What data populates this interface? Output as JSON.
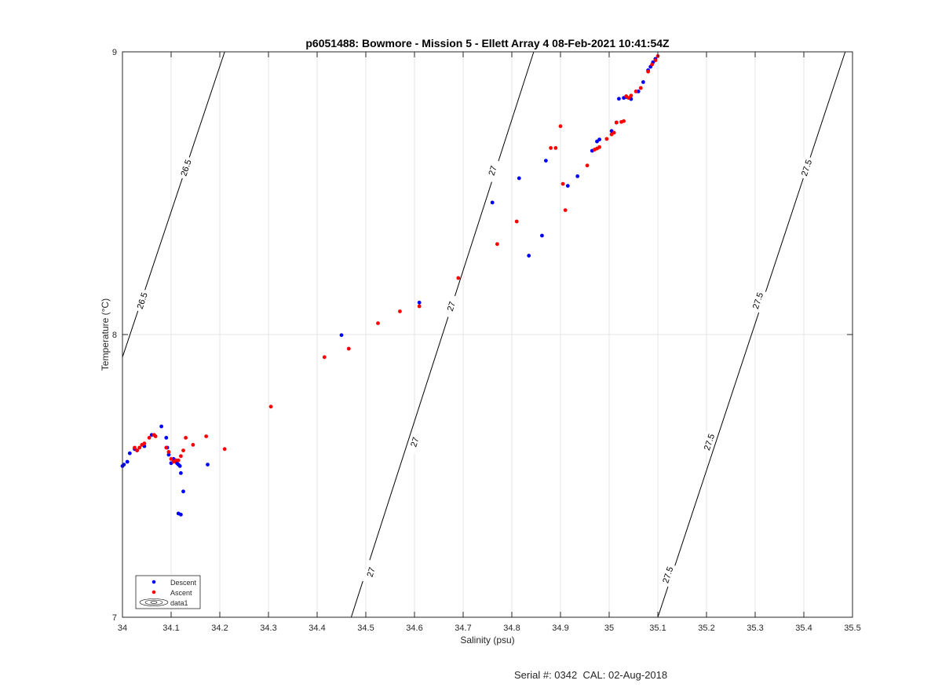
{
  "chart_data": {
    "type": "scatter",
    "title": "p6051488: Bowmore - Mission 5 - Ellett Array 4 08-Feb-2021 10:41:54Z",
    "xlabel": "Salinity (psu)",
    "ylabel": "Temperature (°C)",
    "xlim": [
      34,
      35.5
    ],
    "ylim": [
      7,
      9
    ],
    "xticks": [
      "34",
      "34.1",
      "34.2",
      "34.3",
      "34.4",
      "34.5",
      "34.6",
      "34.7",
      "34.8",
      "34.9",
      "35",
      "35.1",
      "35.2",
      "35.3",
      "35.4",
      "35.5"
    ],
    "yticks": [
      "7",
      "8",
      "9"
    ],
    "grid": true,
    "legend_position": "bottom-left",
    "legend": [
      "Descent",
      "Ascent",
      "data1"
    ],
    "colors": {
      "descent": "#0000ff",
      "ascent": "#ff0000",
      "contour": "#000000",
      "grid": "#e6e6e6"
    },
    "contours": [
      {
        "label": "26.5",
        "points": [
          [
            34.0,
            7.92
          ],
          [
            34.21,
            9.0
          ]
        ],
        "label_positions": [
          [
            34.04,
            8.12
          ],
          [
            34.13,
            8.59
          ]
        ]
      },
      {
        "label": "27",
        "points": [
          [
            34.47,
            7.0
          ],
          [
            34.845,
            9.0
          ]
        ],
        "label_positions": [
          [
            34.51,
            7.16
          ],
          [
            34.6,
            7.62
          ],
          [
            34.675,
            8.1
          ],
          [
            34.76,
            8.58
          ]
        ]
      },
      {
        "label": "27.5",
        "points": [
          [
            35.1,
            7.0
          ],
          [
            35.485,
            9.0
          ]
        ],
        "label_positions": [
          [
            35.12,
            7.15
          ],
          [
            35.205,
            7.62
          ],
          [
            35.305,
            8.12
          ],
          [
            35.405,
            8.59
          ]
        ]
      }
    ],
    "series": [
      {
        "name": "Descent",
        "x": [
          34.0,
          34.003,
          34.01,
          34.015,
          34.025,
          34.03,
          34.045,
          34.06,
          34.08,
          34.09,
          34.092,
          34.095,
          34.1,
          34.105,
          34.108,
          34.112,
          34.115,
          34.118,
          34.12,
          34.125,
          34.115,
          34.12,
          34.175,
          34.45,
          34.61,
          34.76,
          34.815,
          34.835,
          34.862,
          34.87,
          34.915,
          34.935,
          34.965,
          34.975,
          34.98,
          35.005,
          35.015,
          35.02,
          35.03,
          35.035,
          35.045,
          35.06,
          35.07,
          35.08,
          35.085,
          35.09,
          35.095
        ],
        "y": [
          7.535,
          7.54,
          7.55,
          7.58,
          7.595,
          7.59,
          7.605,
          7.645,
          7.675,
          7.635,
          7.6,
          7.575,
          7.545,
          7.56,
          7.555,
          7.545,
          7.54,
          7.535,
          7.51,
          7.445,
          7.367,
          7.363,
          7.54,
          7.998,
          8.113,
          8.467,
          8.553,
          8.279,
          8.35,
          8.615,
          8.526,
          8.56,
          8.65,
          8.683,
          8.69,
          8.72,
          8.75,
          8.834,
          8.837,
          8.84,
          8.833,
          8.86,
          8.893,
          8.935,
          8.947,
          8.963,
          8.975
        ]
      },
      {
        "name": "Ascent",
        "x": [
          34.025,
          34.03,
          34.035,
          34.04,
          34.045,
          34.055,
          34.065,
          34.068,
          34.09,
          34.095,
          34.1,
          34.105,
          34.11,
          34.115,
          34.12,
          34.125,
          34.13,
          34.145,
          34.172,
          34.21,
          34.305,
          34.415,
          34.465,
          34.525,
          34.57,
          34.61,
          34.69,
          34.77,
          34.81,
          34.88,
          34.89,
          34.9,
          34.905,
          34.91,
          34.955,
          34.97,
          34.975,
          34.98,
          34.995,
          35.005,
          35.01,
          35.015,
          35.025,
          35.03,
          35.035,
          35.04,
          35.045,
          35.055,
          35.065,
          35.08,
          35.088,
          35.095,
          35.1
        ],
        "y": [
          7.6,
          7.59,
          7.6,
          7.61,
          7.615,
          7.635,
          7.645,
          7.64,
          7.6,
          7.585,
          7.56,
          7.55,
          7.555,
          7.555,
          7.57,
          7.59,
          7.635,
          7.61,
          7.64,
          7.595,
          7.745,
          7.92,
          7.95,
          8.04,
          8.082,
          8.1,
          8.2,
          8.32,
          8.4,
          8.66,
          8.66,
          8.737,
          8.533,
          8.44,
          8.598,
          8.654,
          8.658,
          8.663,
          8.692,
          8.708,
          8.714,
          8.75,
          8.752,
          8.755,
          8.843,
          8.837,
          8.845,
          8.86,
          8.872,
          8.93,
          8.955,
          8.97,
          8.985
        ]
      }
    ]
  },
  "footer": {
    "serial_label": "Serial #: 0342  CAL: 02-Aug-2018"
  }
}
